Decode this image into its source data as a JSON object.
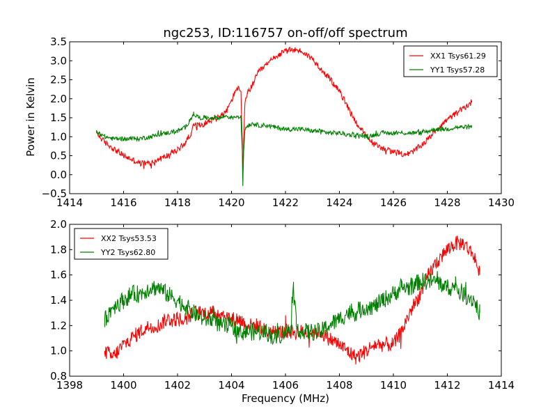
{
  "chart_data": [
    {
      "type": "line",
      "title": "ngc253, ID:116757 on-off/off spectrum",
      "xlabel": "",
      "ylabel": "Power in Kelvin",
      "xlim": [
        1414,
        1430
      ],
      "ylim": [
        -0.5,
        3.5
      ],
      "xticks": [
        1414,
        1416,
        1418,
        1420,
        1422,
        1424,
        1426,
        1428,
        1430
      ],
      "yticks": [
        -0.5,
        0.0,
        0.5,
        1.0,
        1.5,
        2.0,
        2.5,
        3.0,
        3.5
      ],
      "xtick_labels": [
        "1414",
        "1416",
        "1418",
        "1420",
        "1422",
        "1424",
        "1426",
        "1428",
        "1430"
      ],
      "ytick_labels": [
        "−0.5",
        "0.0",
        "0.5",
        "1.0",
        "1.5",
        "2.0",
        "2.5",
        "3.0",
        "3.5"
      ],
      "legend": "upper right",
      "grid": false,
      "series": [
        {
          "name": "XX1 Tsys61.29",
          "color": "#ff0000",
          "x": [
            1415.0,
            1415.3,
            1415.6,
            1416.0,
            1416.3,
            1416.6,
            1417.0,
            1417.3,
            1417.6,
            1418.0,
            1418.3,
            1418.5,
            1418.6,
            1418.8,
            1419.0,
            1419.3,
            1419.6,
            1419.8,
            1420.0,
            1420.2,
            1420.35,
            1420.4,
            1420.42,
            1420.45,
            1420.5,
            1420.6,
            1420.8,
            1421.0,
            1421.3,
            1421.6,
            1422.0,
            1422.3,
            1422.6,
            1423.0,
            1423.3,
            1423.6,
            1424.0,
            1424.3,
            1424.6,
            1425.0,
            1425.3,
            1425.6,
            1426.0,
            1426.3,
            1426.6,
            1427.0,
            1427.3,
            1427.6,
            1428.0,
            1428.3,
            1428.6,
            1428.9
          ],
          "y": [
            1.1,
            0.85,
            0.7,
            0.5,
            0.4,
            0.3,
            0.3,
            0.4,
            0.5,
            0.65,
            0.85,
            1.1,
            1.3,
            1.3,
            1.35,
            1.45,
            1.55,
            1.65,
            1.95,
            2.3,
            2.2,
            0.9,
            0.0,
            0.9,
            1.9,
            2.15,
            2.4,
            2.7,
            2.9,
            3.1,
            3.25,
            3.3,
            3.25,
            3.05,
            2.8,
            2.55,
            2.2,
            1.8,
            1.4,
            1.0,
            0.8,
            0.7,
            0.6,
            0.55,
            0.55,
            0.75,
            0.95,
            1.2,
            1.45,
            1.6,
            1.75,
            1.9
          ]
        },
        {
          "name": "YY1 Tsys57.28",
          "color": "#008000",
          "x": [
            1415.0,
            1415.3,
            1415.6,
            1416.0,
            1416.3,
            1416.6,
            1417.0,
            1417.3,
            1417.6,
            1418.0,
            1418.3,
            1418.5,
            1418.6,
            1418.8,
            1419.0,
            1419.3,
            1419.6,
            1419.8,
            1420.0,
            1420.2,
            1420.35,
            1420.4,
            1420.42,
            1420.45,
            1420.5,
            1420.6,
            1420.8,
            1421.0,
            1421.3,
            1421.6,
            1422.0,
            1422.3,
            1422.6,
            1423.0,
            1423.3,
            1423.6,
            1424.0,
            1424.3,
            1424.6,
            1425.0,
            1425.3,
            1425.6,
            1426.0,
            1426.3,
            1426.6,
            1427.0,
            1427.3,
            1427.6,
            1428.0,
            1428.3,
            1428.6,
            1428.9
          ],
          "y": [
            1.15,
            1.0,
            0.95,
            0.95,
            0.95,
            0.95,
            1.0,
            1.05,
            1.1,
            1.15,
            1.25,
            1.5,
            1.6,
            1.5,
            1.5,
            1.5,
            1.5,
            1.55,
            1.5,
            1.55,
            1.5,
            0.6,
            -0.3,
            0.6,
            1.2,
            1.3,
            1.35,
            1.3,
            1.3,
            1.25,
            1.2,
            1.2,
            1.2,
            1.15,
            1.15,
            1.1,
            1.1,
            1.05,
            1.05,
            1.0,
            1.05,
            1.1,
            1.1,
            1.1,
            1.1,
            1.1,
            1.15,
            1.2,
            1.2,
            1.25,
            1.25,
            1.25
          ]
        }
      ]
    },
    {
      "type": "line",
      "title": "",
      "xlabel": "Frequency (MHz)",
      "ylabel": "",
      "xlim": [
        1398,
        1414
      ],
      "ylim": [
        0.8,
        2.0
      ],
      "xticks": [
        1398,
        1400,
        1402,
        1404,
        1406,
        1408,
        1410,
        1412,
        1414
      ],
      "yticks": [
        0.8,
        1.0,
        1.2,
        1.4,
        1.6,
        1.8,
        2.0
      ],
      "xtick_labels": [
        "1398",
        "1400",
        "1402",
        "1404",
        "1406",
        "1408",
        "1410",
        "1412",
        "1414"
      ],
      "ytick_labels": [
        "0.8",
        "1.0",
        "1.2",
        "1.4",
        "1.6",
        "1.8",
        "2.0"
      ],
      "legend": "upper left",
      "grid": false,
      "series": [
        {
          "name": "XX2 Tsys53.53",
          "color": "#ff0000",
          "x": [
            1399.3,
            1399.6,
            1400.0,
            1400.3,
            1400.6,
            1401.0,
            1401.3,
            1401.6,
            1402.0,
            1402.3,
            1402.6,
            1403.0,
            1403.3,
            1403.6,
            1404.0,
            1404.3,
            1404.6,
            1405.0,
            1405.3,
            1405.6,
            1406.0,
            1406.3,
            1406.6,
            1407.0,
            1407.3,
            1407.6,
            1408.0,
            1408.3,
            1408.6,
            1409.0,
            1409.3,
            1409.6,
            1410.0,
            1410.3,
            1410.6,
            1411.0,
            1411.3,
            1411.6,
            1412.0,
            1412.3,
            1412.6,
            1413.0,
            1413.2
          ],
          "y": [
            1.0,
            0.95,
            1.05,
            1.1,
            1.15,
            1.2,
            1.2,
            1.25,
            1.25,
            1.25,
            1.3,
            1.3,
            1.3,
            1.3,
            1.25,
            1.25,
            1.2,
            1.2,
            1.15,
            1.15,
            1.15,
            1.15,
            1.15,
            1.15,
            1.15,
            1.1,
            1.05,
            1.0,
            0.95,
            1.0,
            1.05,
            1.05,
            1.05,
            1.15,
            1.3,
            1.45,
            1.6,
            1.7,
            1.8,
            1.85,
            1.85,
            1.75,
            1.6
          ]
        },
        {
          "name": "YY2 Tsys62.80",
          "color": "#008000",
          "x": [
            1399.3,
            1399.6,
            1400.0,
            1400.3,
            1400.6,
            1401.0,
            1401.3,
            1401.6,
            1402.0,
            1402.3,
            1402.6,
            1403.0,
            1403.3,
            1403.6,
            1404.0,
            1404.3,
            1404.6,
            1405.0,
            1405.3,
            1405.6,
            1406.0,
            1406.2,
            1406.3,
            1406.4,
            1406.6,
            1407.0,
            1407.3,
            1407.6,
            1408.0,
            1408.3,
            1408.6,
            1409.0,
            1409.3,
            1409.6,
            1410.0,
            1410.3,
            1410.6,
            1411.0,
            1411.3,
            1411.6,
            1412.0,
            1412.3,
            1412.6,
            1413.0,
            1413.2
          ],
          "y": [
            1.25,
            1.35,
            1.4,
            1.45,
            1.45,
            1.5,
            1.5,
            1.45,
            1.4,
            1.35,
            1.3,
            1.25,
            1.25,
            1.2,
            1.2,
            1.15,
            1.15,
            1.15,
            1.15,
            1.1,
            1.15,
            1.2,
            1.5,
            1.2,
            1.15,
            1.15,
            1.15,
            1.2,
            1.25,
            1.3,
            1.3,
            1.35,
            1.35,
            1.4,
            1.45,
            1.5,
            1.5,
            1.55,
            1.55,
            1.55,
            1.5,
            1.5,
            1.45,
            1.4,
            1.3
          ]
        }
      ]
    }
  ]
}
